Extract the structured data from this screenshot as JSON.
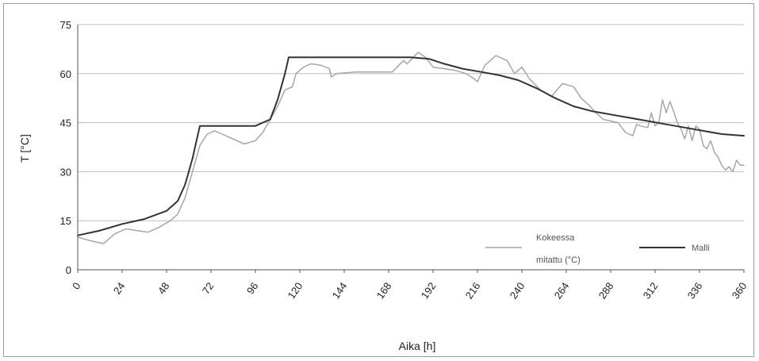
{
  "chart_data": {
    "type": "line",
    "xlabel": "Aika [h]",
    "ylabel": "T [°C]",
    "xlim": [
      0,
      360
    ],
    "ylim": [
      0,
      75
    ],
    "x_ticks": [
      "0",
      "24",
      "48",
      "72",
      "96",
      "120",
      "144",
      "168",
      "192",
      "216",
      "240",
      "264",
      "288",
      "312",
      "336",
      "360"
    ],
    "y_ticks": [
      "0",
      "15",
      "30",
      "45",
      "60",
      "75"
    ],
    "grid": "horizontal",
    "legend_position": "bottom-right",
    "series": [
      {
        "name": "Kokeessa mitattu (°C)",
        "color": "#a6a6a6",
        "x": [
          0,
          6,
          10,
          14,
          20,
          26,
          32,
          38,
          44,
          50,
          54,
          58,
          62,
          66,
          70,
          74,
          78,
          84,
          90,
          96,
          100,
          104,
          108,
          112,
          116,
          118,
          122,
          126,
          132,
          136,
          137,
          140,
          150,
          160,
          170,
          176,
          178,
          184,
          188,
          192,
          198,
          204,
          210,
          214,
          216,
          220,
          226,
          232,
          236,
          240,
          244,
          250,
          256,
          262,
          268,
          272,
          276,
          280,
          284,
          288,
          292,
          294,
          296,
          300,
          302,
          304,
          308,
          310,
          312,
          314,
          316,
          318,
          320,
          322,
          324,
          326,
          328,
          330,
          332,
          334,
          336,
          338,
          340,
          342,
          344,
          346,
          348,
          350,
          352,
          354,
          356,
          358,
          360
        ],
        "y": [
          10,
          9,
          8.5,
          8,
          11,
          12.5,
          12,
          11.5,
          13,
          15,
          17,
          22,
          30,
          38,
          41.5,
          42.5,
          41.5,
          40,
          38.5,
          39.5,
          42,
          46,
          50,
          55,
          56,
          60,
          62,
          63,
          62.5,
          61.5,
          59,
          60,
          60.5,
          60.5,
          60.5,
          64,
          63,
          66.5,
          65,
          62,
          61.5,
          61,
          60,
          58.5,
          57.5,
          62.5,
          65.5,
          64,
          60,
          62,
          58.5,
          55,
          53,
          57,
          56,
          52.5,
          50.5,
          48,
          46,
          45.5,
          45,
          43.5,
          42,
          41,
          44.5,
          44,
          43.5,
          48,
          44,
          45,
          52,
          48,
          51.5,
          48.5,
          45,
          43,
          40,
          44,
          39.5,
          44,
          43,
          38,
          37,
          39.5,
          36,
          34.5,
          32,
          30.5,
          31.5,
          30,
          33.5,
          32,
          32
        ]
      },
      {
        "name": "Malli",
        "color": "#333333",
        "x": [
          0,
          12,
          24,
          36,
          48,
          54,
          58,
          62,
          66,
          67,
          72,
          84,
          96,
          104,
          108,
          112,
          114,
          120,
          144,
          168,
          180,
          190,
          198,
          208,
          218,
          228,
          238,
          248,
          258,
          268,
          278,
          288,
          298,
          308,
          318,
          328,
          338,
          348,
          360
        ],
        "y": [
          10.5,
          12,
          14,
          15.5,
          18,
          21,
          26,
          34,
          44,
          44,
          44,
          44,
          44,
          46,
          52,
          60,
          65,
          65,
          65,
          65,
          65,
          64.5,
          63,
          61.5,
          60.5,
          59.5,
          58,
          55.5,
          52.5,
          50,
          48.5,
          47.5,
          46.5,
          45.5,
          44.5,
          43.5,
          42.5,
          41.5,
          41
        ]
      }
    ]
  }
}
